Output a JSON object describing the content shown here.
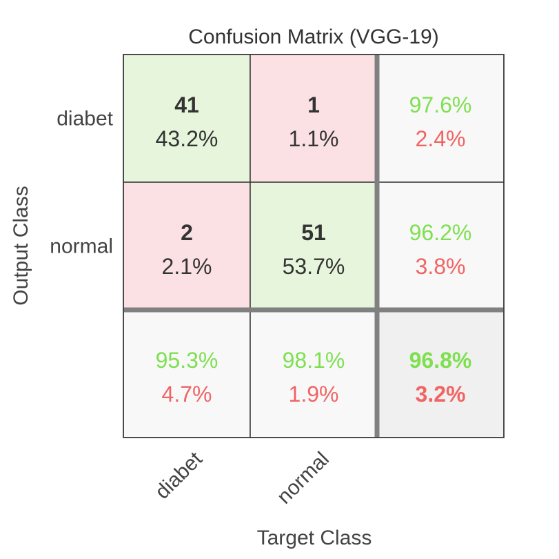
{
  "chart_data": {
    "type": "heatmap",
    "title": "Confusion Matrix (VGG-19)",
    "xlabel": "Target Class",
    "ylabel": "Output Class",
    "classes": [
      "diabet",
      "normal"
    ],
    "matrix": [
      [
        {
          "count": "41",
          "percent": "43.2%"
        },
        {
          "count": "1",
          "percent": "1.1%"
        }
      ],
      [
        {
          "count": "2",
          "percent": "2.1%"
        },
        {
          "count": "51",
          "percent": "53.7%"
        }
      ]
    ],
    "row_summary": [
      {
        "correct": "97.6%",
        "error": "2.4%"
      },
      {
        "correct": "96.2%",
        "error": "3.8%"
      }
    ],
    "column_summary": [
      {
        "correct": "95.3%",
        "error": "4.7%"
      },
      {
        "correct": "98.1%",
        "error": "1.9%"
      }
    ],
    "overall": {
      "correct": "96.8%",
      "error": "3.2%"
    }
  },
  "colors": {
    "diagonal_cell": "#e6f5dc",
    "off_diagonal_cell": "#fbe0e4",
    "summary_cell": "#f8f8f8",
    "overall_cell": "#f0f0f0",
    "correct_text": "#7ee051",
    "error_text": "#f06464",
    "thick_divider": "#808080",
    "grid_line": "#333333"
  }
}
